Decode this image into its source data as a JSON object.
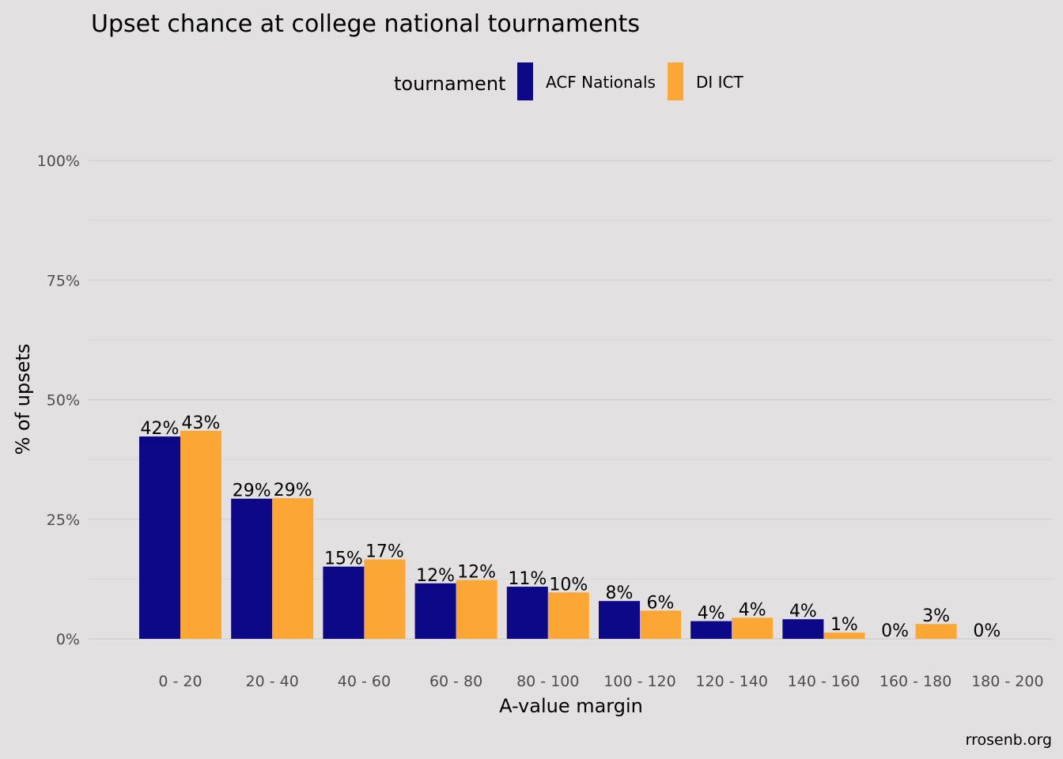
{
  "chart_data": {
    "type": "bar",
    "title": "Upset chance at college national tournaments",
    "xlabel": "A-value margin",
    "ylabel": "% of upsets",
    "ylim": [
      0,
      100
    ],
    "yticks": [
      0,
      25,
      50,
      75,
      100
    ],
    "ytick_labels": [
      "0%",
      "25%",
      "50%",
      "75%",
      "100%"
    ],
    "grid": true,
    "legend": {
      "title": "tournament",
      "position": "top",
      "entries": [
        "ACF Nationals",
        "DI ICT"
      ]
    },
    "categories": [
      "0 - 20",
      "20 - 40",
      "40 - 60",
      "60 - 80",
      "80 - 100",
      "100 - 120",
      "120 - 140",
      "140 - 160",
      "160 - 180",
      "180 - 200"
    ],
    "series": [
      {
        "name": "ACF Nationals",
        "color": "#0d0887",
        "values": [
          42.3,
          29.3,
          15.1,
          11.6,
          10.9,
          7.9,
          3.7,
          4.1,
          0,
          0
        ],
        "labels": [
          "42%",
          "29%",
          "15%",
          "12%",
          "11%",
          "8%",
          "4%",
          "4%",
          "0%",
          "0%"
        ]
      },
      {
        "name": "DI ICT",
        "color": "#fca636",
        "values": [
          43.5,
          29.4,
          16.6,
          12.3,
          9.7,
          5.9,
          4.4,
          1.3,
          3.1,
          null
        ],
        "labels": [
          "43%",
          "29%",
          "17%",
          "12%",
          "10%",
          "6%",
          "4%",
          "1%",
          "3%",
          ""
        ]
      }
    ]
  },
  "caption": "rrosenb.org"
}
